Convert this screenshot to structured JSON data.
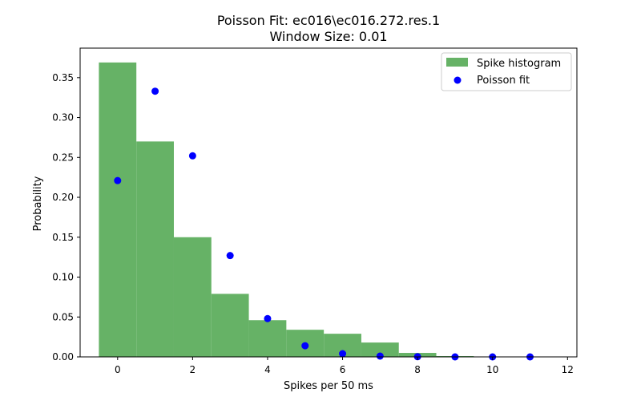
{
  "chart_data": {
    "type": "bar",
    "title": "Poisson Fit: ec016\\ec016.272.res.1",
    "subtitle": "Window Size: 0.01",
    "xlabel": "Spikes per 50 ms",
    "ylabel": "Probability",
    "xlim": [
      -1.0,
      12.25
    ],
    "ylim": [
      0,
      0.387
    ],
    "xticks": [
      0,
      2,
      4,
      6,
      8,
      10,
      12
    ],
    "yticks": [
      0.0,
      0.05,
      0.1,
      0.15,
      0.2,
      0.25,
      0.3,
      0.35
    ],
    "grid": false,
    "legend_position": "top-right",
    "series": [
      {
        "name": "Spike histogram",
        "type": "bar",
        "color": "#66b266",
        "bar_width": 1.0,
        "x": [
          0,
          1,
          2,
          3,
          4,
          5,
          6,
          7,
          8,
          9
        ],
        "values": [
          0.369,
          0.27,
          0.15,
          0.079,
          0.046,
          0.034,
          0.029,
          0.018,
          0.005,
          0.001
        ]
      },
      {
        "name": "Poisson fit",
        "type": "scatter",
        "color": "#0000ff",
        "x": [
          0,
          1,
          2,
          3,
          4,
          5,
          6,
          7,
          8,
          9,
          10,
          11
        ],
        "values": [
          0.221,
          0.333,
          0.252,
          0.127,
          0.048,
          0.014,
          0.004,
          0.001,
          0.0002,
          0.0,
          0.0,
          0.0
        ]
      }
    ]
  }
}
